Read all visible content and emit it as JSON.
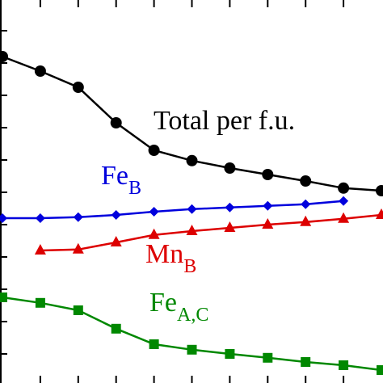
{
  "chart_data": {
    "type": "line",
    "x": [
      0,
      1,
      2,
      3,
      4,
      5,
      6,
      7,
      8,
      9,
      10
    ],
    "xlim": [
      0,
      10
    ],
    "ylim": [
      0.1,
      11.95
    ],
    "xticks": [
      1,
      2,
      3,
      4,
      5,
      6,
      7,
      8,
      9
    ],
    "yticks": [
      1,
      2,
      3,
      4,
      5,
      6,
      7,
      8,
      9,
      10,
      11
    ],
    "series": [
      {
        "color": "#000000",
        "marker": "circle",
        "values": [
          10.2,
          9.75,
          9.25,
          8.15,
          7.3,
          6.98,
          6.75,
          6.55,
          6.35,
          6.13,
          6.05
        ]
      },
      {
        "color": "#0000dd",
        "marker": "diamond",
        "values": [
          5.2,
          5.2,
          5.23,
          5.3,
          5.4,
          5.48,
          5.53,
          5.58,
          5.63,
          5.73,
          null
        ]
      },
      {
        "color": "#dd0000",
        "marker": "triangle",
        "values": [
          null,
          4.2,
          4.23,
          4.45,
          4.68,
          4.8,
          4.9,
          5.0,
          5.08,
          5.18,
          5.3
        ]
      },
      {
        "color": "#008800",
        "marker": "square",
        "values": [
          2.75,
          2.58,
          2.35,
          1.78,
          1.3,
          1.13,
          1.0,
          0.88,
          0.75,
          0.65,
          0.5
        ]
      }
    ],
    "annotations": [
      {
        "text": "Total per f.u."
      },
      {
        "text": "Fe",
        "sub": "B"
      },
      {
        "text": "Mn",
        "sub": "B"
      },
      {
        "text": "Fe",
        "sub": "A,C"
      }
    ]
  }
}
